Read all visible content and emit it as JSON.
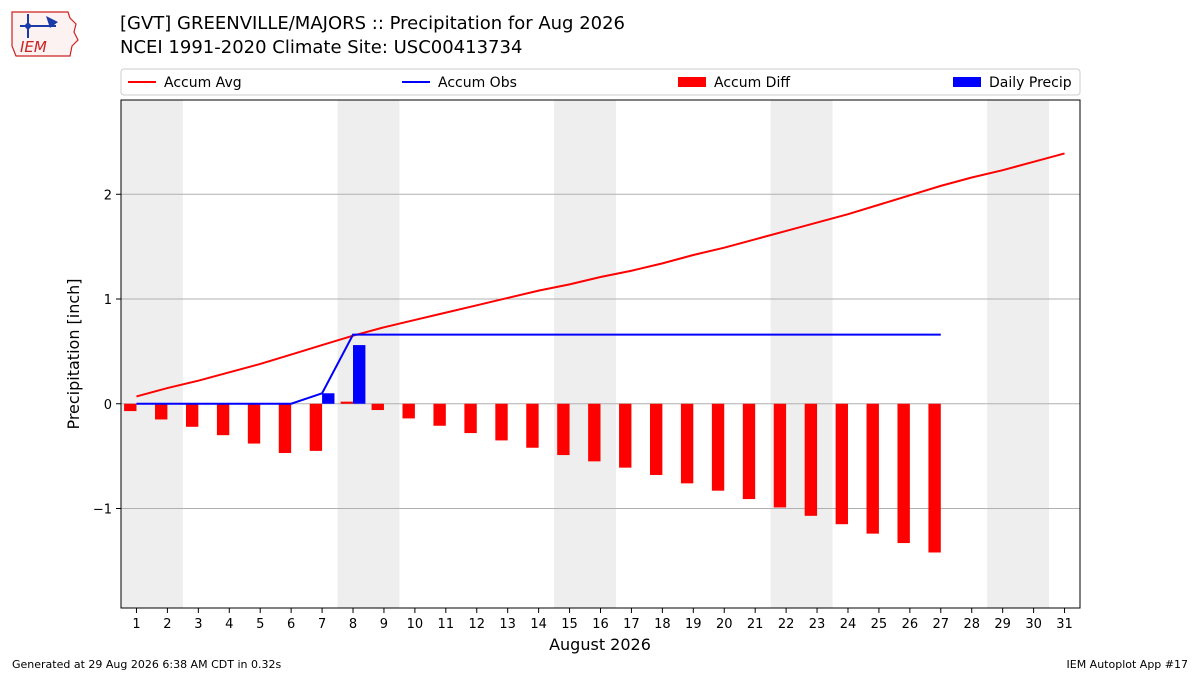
{
  "header": {
    "title_line1": "[GVT] GREENVILLE/MAJORS :: Precipitation for Aug 2026",
    "title_line2": "NCEI 1991-2020 Climate Site: USC00413734",
    "logo_text": "IEM"
  },
  "footer": {
    "generated": "Generated at 29 Aug 2026 6:38 AM CDT in 0.32s",
    "app": "IEM Autoplot App #17"
  },
  "colors": {
    "accum_avg": "#ff0000",
    "accum_obs": "#0000ff",
    "accum_diff": "#ff0000",
    "daily_precip": "#0000ff",
    "weekend_band": "#eeeeee",
    "grid": "#b0b0b0"
  },
  "chart_data": {
    "type": "bar",
    "xlabel": "August 2026",
    "ylabel": "Precipitation [inch]",
    "xlim": [
      0.5,
      31.5
    ],
    "ylim": [
      -1.95,
      2.9
    ],
    "yticks": [
      -1,
      0,
      1,
      2
    ],
    "ytick_labels": [
      "−1",
      "0",
      "1",
      "2"
    ],
    "grid": "horizontal",
    "legend_placement": "top",
    "legend": [
      "Accum Avg",
      "Accum Obs",
      "Accum Diff",
      "Daily Precip"
    ],
    "days": [
      1,
      2,
      3,
      4,
      5,
      6,
      7,
      8,
      9,
      10,
      11,
      12,
      13,
      14,
      15,
      16,
      17,
      18,
      19,
      20,
      21,
      22,
      23,
      24,
      25,
      26,
      27,
      28,
      29,
      30,
      31
    ],
    "shaded_day_ranges": [
      [
        0.5,
        2.5
      ],
      [
        7.5,
        9.5
      ],
      [
        14.5,
        16.5
      ],
      [
        21.5,
        23.5
      ],
      [
        28.5,
        30.5
      ]
    ],
    "accum_avg": [
      0.07,
      0.15,
      0.22,
      0.3,
      0.38,
      0.47,
      0.56,
      0.65,
      0.73,
      0.8,
      0.87,
      0.94,
      1.01,
      1.08,
      1.14,
      1.21,
      1.27,
      1.34,
      1.42,
      1.49,
      1.57,
      1.65,
      1.73,
      1.81,
      1.9,
      1.99,
      2.08,
      2.16,
      2.23,
      2.31,
      2.39
    ],
    "accum_obs": [
      0,
      0,
      0,
      0,
      0,
      0,
      0.1,
      0.66,
      0.66,
      0.66,
      0.66,
      0.66,
      0.66,
      0.66,
      0.66,
      0.66,
      0.66,
      0.66,
      0.66,
      0.66,
      0.66,
      0.66,
      0.66,
      0.66,
      0.66,
      0.66,
      0.66
    ],
    "accum_diff": [
      -0.07,
      -0.15,
      -0.22,
      -0.3,
      -0.38,
      -0.47,
      -0.45,
      0.02,
      -0.06,
      -0.14,
      -0.21,
      -0.28,
      -0.35,
      -0.42,
      -0.49,
      -0.55,
      -0.61,
      -0.68,
      -0.76,
      -0.83,
      -0.91,
      -0.99,
      -1.07,
      -1.15,
      -1.24,
      -1.33,
      -1.42
    ],
    "daily_precip": [
      0,
      0,
      0,
      0,
      0,
      0,
      0.1,
      0.56,
      0,
      0,
      0,
      0,
      0,
      0,
      0,
      0,
      0,
      0,
      0,
      0,
      0,
      0,
      0,
      0,
      0,
      0,
      0
    ]
  }
}
